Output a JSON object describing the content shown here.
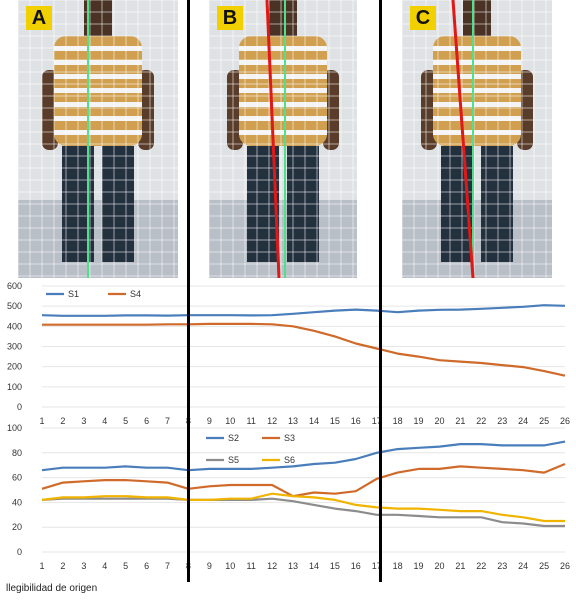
{
  "panels": [
    {
      "label": "A",
      "lines": [
        "green"
      ]
    },
    {
      "label": "B",
      "lines": [
        "green",
        "red"
      ]
    },
    {
      "label": "C",
      "lines": [
        "green",
        "red"
      ]
    }
  ],
  "colors": {
    "green": "#4fe08a",
    "red": "#e01818"
  },
  "caption": "llegibilidad de origen",
  "chart_data": [
    {
      "type": "line",
      "x": [
        1,
        2,
        3,
        4,
        5,
        6,
        7,
        8,
        9,
        10,
        11,
        12,
        13,
        14,
        15,
        16,
        17,
        18,
        19,
        20,
        21,
        22,
        23,
        24,
        25,
        26
      ],
      "ylim": [
        0,
        600
      ],
      "yticks": [
        0,
        100,
        200,
        300,
        400,
        500,
        600
      ],
      "legend_position": "top-left",
      "series": [
        {
          "name": "S1",
          "color": "#4a7ebb",
          "values": [
            455,
            452,
            452,
            452,
            454,
            454,
            453,
            455,
            455,
            455,
            454,
            455,
            462,
            470,
            478,
            483,
            478,
            470,
            478,
            482,
            483,
            487,
            492,
            497,
            505,
            502
          ]
        },
        {
          "name": "S4",
          "color": "#cf6a2a",
          "values": [
            408,
            408,
            408,
            408,
            408,
            408,
            410,
            410,
            412,
            412,
            412,
            410,
            400,
            378,
            350,
            315,
            290,
            265,
            250,
            232,
            225,
            218,
            208,
            198,
            178,
            155
          ]
        }
      ]
    },
    {
      "type": "line",
      "x": [
        1,
        2,
        3,
        4,
        5,
        6,
        7,
        8,
        9,
        10,
        11,
        12,
        13,
        14,
        15,
        16,
        17,
        18,
        19,
        20,
        21,
        22,
        23,
        24,
        25,
        26
      ],
      "ylim": [
        0,
        100
      ],
      "yticks": [
        0,
        20,
        40,
        60,
        80,
        100
      ],
      "legend_position": "top-center",
      "series": [
        {
          "name": "S2",
          "color": "#4a7ebb",
          "values": [
            66,
            68,
            68,
            68,
            69,
            68,
            68,
            66,
            67,
            67,
            67,
            68,
            69,
            71,
            72,
            75,
            80,
            83,
            84,
            85,
            87,
            87,
            86,
            86,
            86,
            89
          ]
        },
        {
          "name": "S3",
          "color": "#cf6a2a",
          "values": [
            51,
            56,
            57,
            58,
            58,
            57,
            56,
            51,
            53,
            54,
            54,
            54,
            45,
            48,
            47,
            49,
            59,
            64,
            67,
            67,
            69,
            68,
            67,
            66,
            64,
            71
          ]
        },
        {
          "name": "S5",
          "color": "#8c8c8c",
          "values": [
            42,
            43,
            43,
            43,
            43,
            43,
            43,
            42,
            42,
            42,
            42,
            43,
            41,
            38,
            35,
            33,
            30,
            30,
            29,
            28,
            28,
            28,
            24,
            23,
            21,
            21
          ]
        },
        {
          "name": "S6",
          "color": "#f0b400",
          "values": [
            42,
            44,
            44,
            45,
            45,
            44,
            44,
            42,
            42,
            43,
            43,
            47,
            45,
            44,
            42,
            38,
            36,
            35,
            35,
            34,
            33,
            33,
            30,
            28,
            25,
            25
          ]
        }
      ]
    }
  ]
}
